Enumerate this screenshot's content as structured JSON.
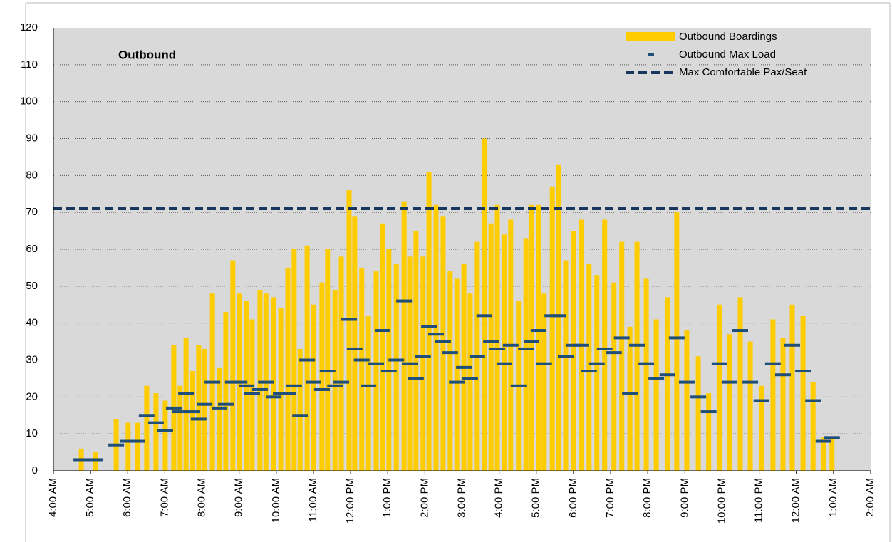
{
  "chart_data": {
    "type": "bar",
    "annotation": "Outbound",
    "xlim": [
      4,
      26
    ],
    "xticks": [
      {
        "value": 4,
        "label": "4:00 AM"
      },
      {
        "value": 5,
        "label": "5:00 AM"
      },
      {
        "value": 6,
        "label": "6:00 AM"
      },
      {
        "value": 7,
        "label": "7:00 AM"
      },
      {
        "value": 8,
        "label": "8:00 AM"
      },
      {
        "value": 9,
        "label": "9:00 AM"
      },
      {
        "value": 10,
        "label": "10:00 AM"
      },
      {
        "value": 11,
        "label": "11:00 AM"
      },
      {
        "value": 12,
        "label": "12:00 PM"
      },
      {
        "value": 13,
        "label": "1:00 PM"
      },
      {
        "value": 14,
        "label": "2:00 PM"
      },
      {
        "value": 15,
        "label": "3:00 PM"
      },
      {
        "value": 16,
        "label": "4:00 PM"
      },
      {
        "value": 17,
        "label": "5:00 PM"
      },
      {
        "value": 18,
        "label": "6:00 PM"
      },
      {
        "value": 19,
        "label": "7:00 PM"
      },
      {
        "value": 20,
        "label": "8:00 PM"
      },
      {
        "value": 21,
        "label": "9:00 PM"
      },
      {
        "value": 22,
        "label": "10:00 PM"
      },
      {
        "value": 23,
        "label": "11:00 PM"
      },
      {
        "value": 24,
        "label": "12:00 AM"
      },
      {
        "value": 25,
        "label": "1:00 AM"
      },
      {
        "value": 26,
        "label": "2:00 AM"
      }
    ],
    "ylim": [
      0,
      120
    ],
    "yticks": [
      0,
      10,
      20,
      30,
      40,
      50,
      60,
      70,
      80,
      90,
      100,
      110,
      120
    ],
    "grid": true,
    "legend": "top-right",
    "x": [
      4.75,
      5.13,
      5.69,
      6.01,
      6.26,
      6.51,
      6.76,
      7.01,
      7.24,
      7.41,
      7.57,
      7.74,
      7.91,
      8.07,
      8.28,
      8.47,
      8.64,
      8.83,
      9.01,
      9.2,
      9.35,
      9.56,
      9.72,
      9.93,
      10.12,
      10.31,
      10.48,
      10.64,
      10.83,
      11.0,
      11.23,
      11.38,
      11.58,
      11.75,
      11.96,
      12.11,
      12.3,
      12.48,
      12.69,
      12.86,
      13.03,
      13.23,
      13.44,
      13.59,
      13.76,
      13.95,
      14.11,
      14.3,
      14.49,
      14.68,
      14.86,
      15.05,
      15.22,
      15.41,
      15.6,
      15.78,
      15.95,
      16.14,
      16.31,
      16.52,
      16.72,
      16.87,
      17.06,
      17.21,
      17.43,
      17.6,
      17.79,
      18.0,
      18.21,
      18.42,
      18.63,
      18.84,
      19.09,
      19.3,
      19.52,
      19.71,
      19.96,
      20.23,
      20.53,
      20.78,
      21.05,
      21.36,
      21.64,
      21.93,
      22.2,
      22.49,
      22.76,
      23.06,
      23.37,
      23.64,
      23.89,
      24.18,
      24.45,
      24.73,
      24.96
    ],
    "series": [
      {
        "name": "Outbound Boardings",
        "color": "#ffcc00",
        "values": [
          6,
          5,
          14,
          13,
          13,
          23,
          21,
          19,
          34,
          23,
          36,
          27,
          34,
          33,
          48,
          28,
          43,
          57,
          48,
          46,
          41,
          49,
          48,
          47,
          44,
          55,
          60,
          33,
          61,
          45,
          51,
          60,
          49,
          58,
          76,
          69,
          55,
          42,
          54,
          67,
          60,
          56,
          73,
          58,
          65,
          58,
          81,
          72,
          69,
          54,
          52,
          56,
          48,
          62,
          90,
          67,
          72,
          64,
          68,
          46,
          63,
          72,
          72,
          48,
          77,
          83,
          57,
          65,
          68,
          56,
          53,
          68,
          51,
          62,
          39,
          62,
          52,
          41,
          47,
          70,
          38,
          31,
          21,
          45,
          37,
          47,
          35,
          23,
          41,
          36,
          45,
          42,
          24,
          9,
          9
        ]
      },
      {
        "name": "Outbound Max Load",
        "color": "#1f4e79",
        "values": [
          3,
          3,
          7,
          8,
          8,
          15,
          13,
          11,
          17,
          16,
          21,
          16,
          14,
          18,
          24,
          17,
          18,
          24,
          24,
          23,
          21,
          22,
          24,
          20,
          21,
          21,
          23,
          15,
          30,
          24,
          22,
          27,
          23,
          24,
          41,
          33,
          30,
          23,
          29,
          38,
          27,
          30,
          46,
          29,
          25,
          31,
          39,
          37,
          35,
          32,
          24,
          28,
          25,
          31,
          42,
          35,
          33,
          29,
          34,
          23,
          33,
          35,
          38,
          29,
          42,
          42,
          31,
          34,
          34,
          27,
          29,
          33,
          32,
          36,
          21,
          34,
          29,
          25,
          26,
          36,
          24,
          20,
          16,
          29,
          24,
          38,
          24,
          19,
          29,
          26,
          34,
          27,
          19,
          8,
          9
        ]
      }
    ],
    "reference_lines": [
      {
        "name": "Max Comfortable Pax/Seat",
        "value": 71,
        "color": "#17375e"
      }
    ]
  }
}
